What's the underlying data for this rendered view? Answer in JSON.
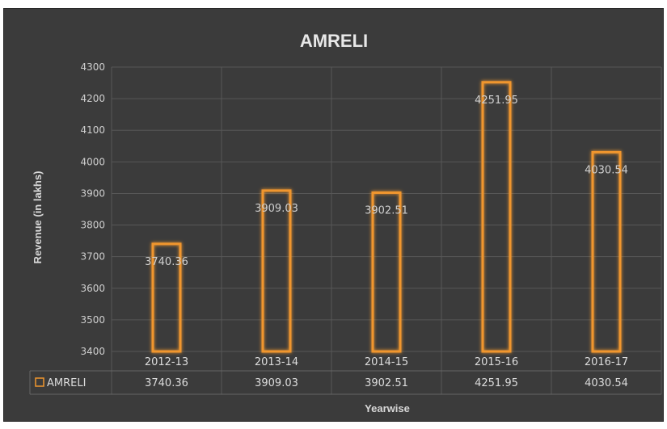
{
  "chart_data": {
    "type": "bar",
    "title": "AMRELI",
    "xlabel": "Yearwise",
    "ylabel": "Revenue (in lakhs)",
    "categories": [
      "2012-13",
      "2013-14",
      "2014-15",
      "2015-16",
      "2016-17"
    ],
    "series": [
      {
        "name": "AMRELI",
        "values": [
          3740.36,
          3909.03,
          3902.51,
          4251.95,
          4030.54
        ]
      }
    ],
    "data_labels": [
      "3740.36",
      "3909.03",
      "3902.51",
      "4251.95",
      "4030.54"
    ],
    "table_values": [
      "3740.36",
      "3909.03",
      "3902.51",
      "4251.95",
      "4030.54"
    ],
    "ylim": [
      3400,
      4300
    ],
    "yticks": [
      3400,
      3500,
      3600,
      3700,
      3800,
      3900,
      4000,
      4100,
      4200,
      4300
    ],
    "grid": true,
    "legend": "data-table",
    "colors": {
      "background": "#3b3b3b",
      "bar_outline": "#f0962e",
      "grid": "#575757",
      "text": "#d0d0d0"
    }
  }
}
